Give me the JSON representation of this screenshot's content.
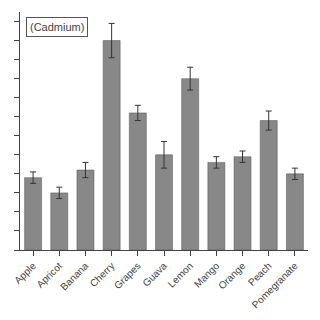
{
  "chart_data": {
    "type": "bar",
    "categories": [
      "Apple",
      "Apricot",
      "Banana",
      "Cherry",
      "Grapes",
      "Guava",
      "Lemon",
      "Mango",
      "Orange",
      "Peach",
      "Pomegranate"
    ],
    "series": [
      {
        "name": "(Cadmium)",
        "color": "#888888",
        "values": [
          0.38,
          0.3,
          0.42,
          1.1,
          0.72,
          0.5,
          0.9,
          0.46,
          0.49,
          0.68,
          0.4
        ],
        "errors": [
          0.03,
          0.03,
          0.04,
          0.09,
          0.04,
          0.07,
          0.06,
          0.03,
          0.03,
          0.05,
          0.03
        ]
      }
    ],
    "ylim": [
      0,
      1.25
    ],
    "yticks": [
      0,
      0.1,
      0.2,
      0.3,
      0.4,
      0.5,
      0.6,
      0.7,
      0.8,
      0.9,
      1.0,
      1.1,
      1.2
    ],
    "tick_labels": "x",
    "grid": false,
    "legend": "upper left"
  }
}
